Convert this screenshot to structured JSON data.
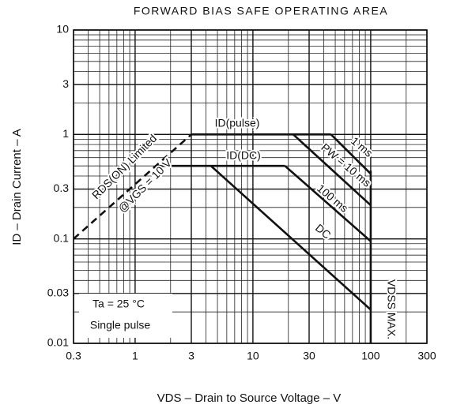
{
  "chart_data": {
    "type": "line",
    "title": "FORWARD BIAS SAFE OPERATING AREA",
    "x_label": "VDS – Drain to Source Voltage – V",
    "y_label": "ID – Drain Current – A",
    "log_x": true,
    "log_y": true,
    "grid": true,
    "xlim": [
      0.3,
      300
    ],
    "xticks": [
      0.3,
      1,
      3,
      10,
      30,
      100,
      300
    ],
    "ylim": [
      0.01,
      10
    ],
    "yticks": [
      0.01,
      0.03,
      0.1,
      0.3,
      1,
      3,
      10
    ],
    "color": "#111111",
    "series": [
      {
        "x": [
          0.3,
          3
        ],
        "values": [
          0.1,
          1
        ],
        "dashed": true
      },
      {
        "x": [
          3,
          46
        ],
        "values": [
          1,
          1
        ]
      },
      {
        "x": [
          1.5,
          18.7
        ],
        "values": [
          0.5,
          0.5
        ]
      },
      {
        "x": [
          46,
          100
        ],
        "values": [
          1,
          0.42
        ]
      },
      {
        "x": [
          22,
          100
        ],
        "values": [
          1,
          0.21
        ]
      },
      {
        "x": [
          18.7,
          100
        ],
        "values": [
          0.5,
          0.095
        ]
      },
      {
        "x": [
          4.4,
          100
        ],
        "values": [
          0.5,
          0.021
        ]
      },
      {
        "x": [
          100,
          100
        ],
        "values": [
          0.45,
          0.01
        ]
      }
    ],
    "annotations": [
      "ID(pulse)",
      "ID(DC)",
      "RDS(ON) Limited",
      "@VGS = 10 V",
      "1 ms",
      "PW = 10 ms",
      "100 ms",
      "DC",
      "VDSS MAX.",
      "Ta = 25 °C",
      "Single pulse"
    ]
  }
}
